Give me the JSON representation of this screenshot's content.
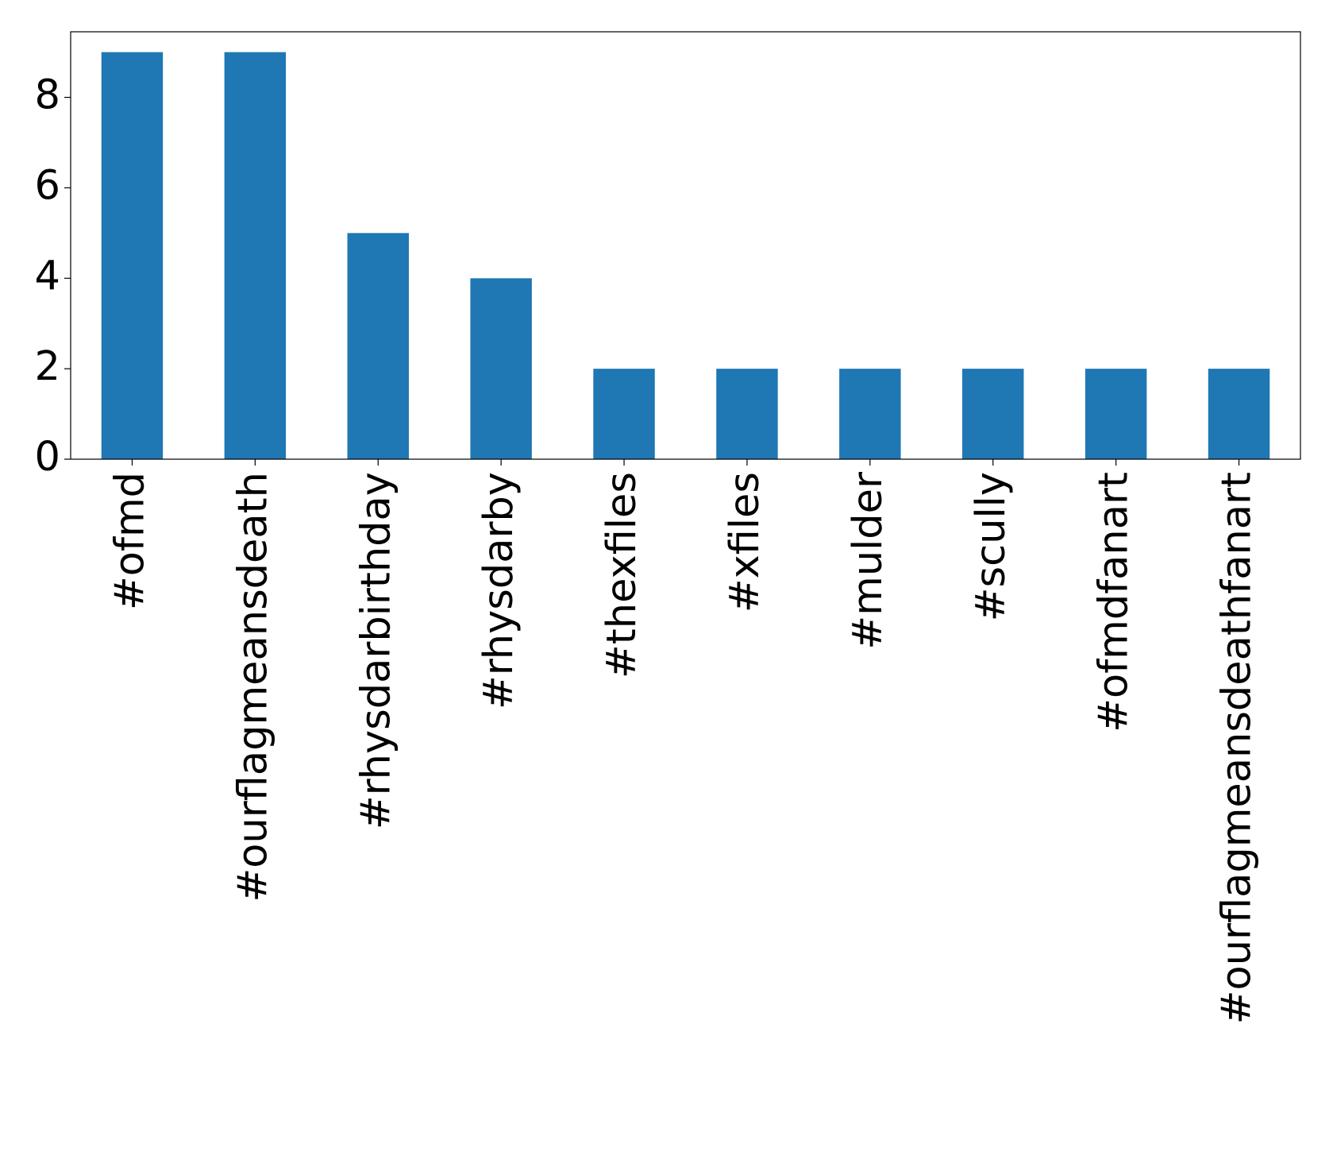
{
  "chart_data": {
    "type": "bar",
    "categories": [
      "#ofmd",
      "#ourflagmeansdeath",
      "#rhysdarbirthday",
      "#rhysdarby",
      "#thexfiles",
      "#xfiles",
      "#mulder",
      "#scully",
      "#ofmdfanart",
      "#ourflagmeansdeathfanart"
    ],
    "values": [
      9,
      9,
      5,
      4,
      2,
      2,
      2,
      2,
      2,
      2
    ],
    "color": "#1f77b4",
    "ylim": [
      0,
      9.45
    ],
    "yticks": [
      0,
      2,
      4,
      6,
      8
    ],
    "grid": false
  }
}
